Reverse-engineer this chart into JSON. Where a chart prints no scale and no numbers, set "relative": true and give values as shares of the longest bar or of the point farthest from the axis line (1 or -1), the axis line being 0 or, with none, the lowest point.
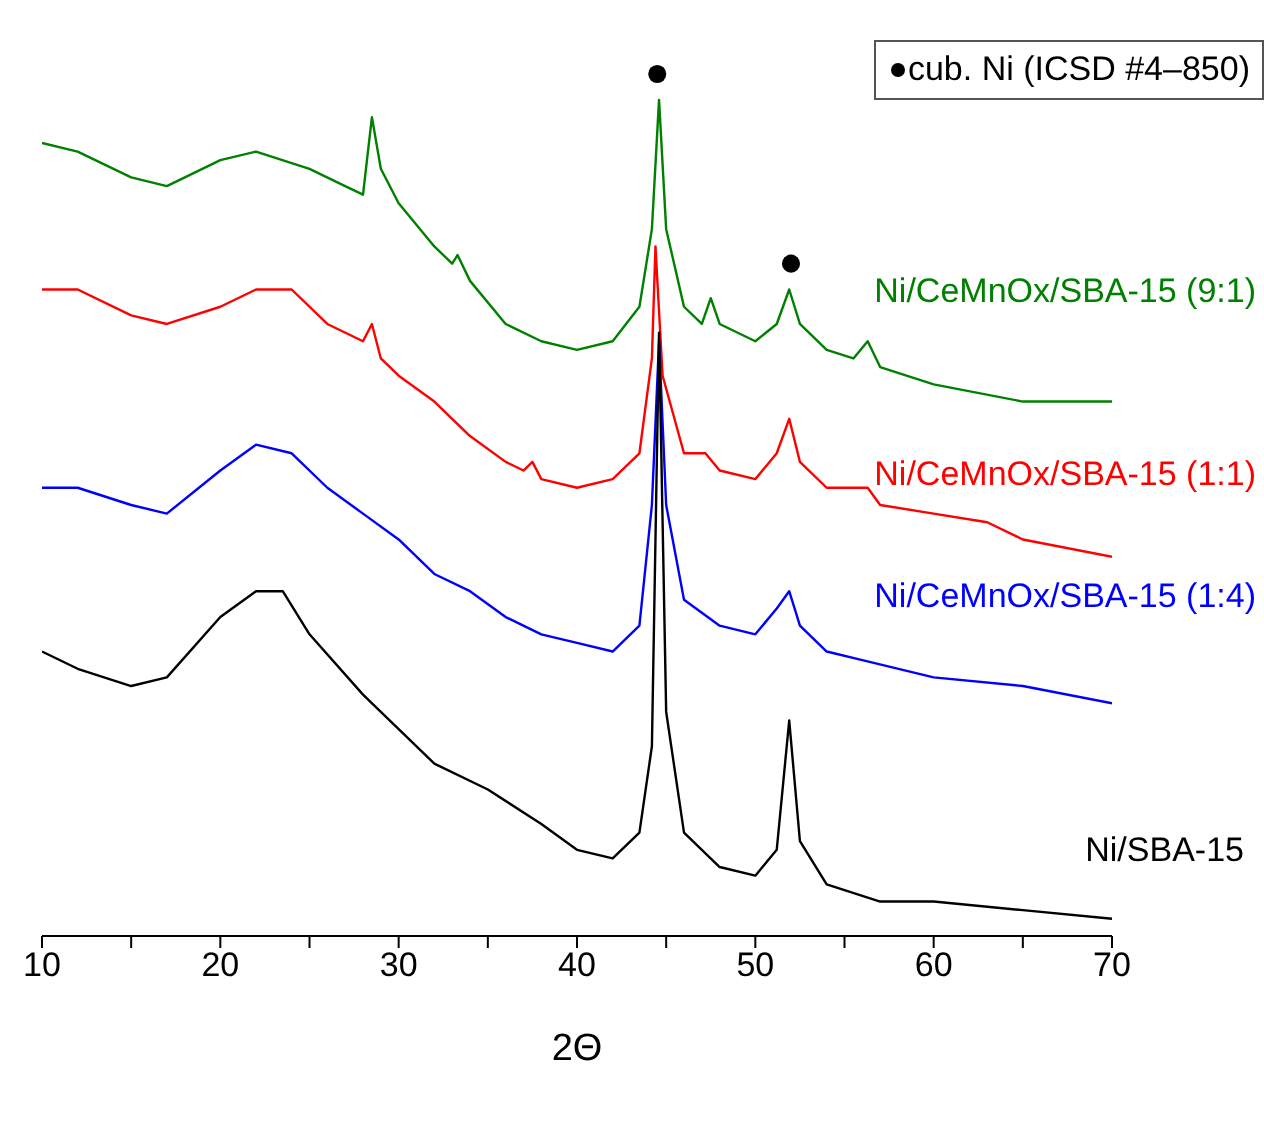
{
  "chart_data": {
    "type": "line",
    "xlabel": "2Θ",
    "relative": true,
    "xlim": [
      10,
      70
    ],
    "xticks": [
      10,
      {
        "value": 15,
        "label": null
      },
      20,
      {
        "value": 25,
        "label": null
      },
      30,
      {
        "value": 35,
        "label": null
      },
      40,
      {
        "value": 45,
        "label": null
      },
      50,
      {
        "value": 55,
        "label": null
      },
      60,
      {
        "value": 65,
        "label": null
      },
      70
    ],
    "legend": "top right",
    "marker": "none",
    "line_style": "solid",
    "series": [
      {
        "name": "Ni/CeMnOx/SBA-15 (9:1)",
        "color": "#008000",
        "x": [
          10,
          12,
          15,
          17,
          20,
          22,
          25,
          27,
          28,
          28.5,
          29,
          30,
          32,
          33,
          33.3,
          34,
          36,
          38,
          40,
          42,
          43.5,
          44.2,
          44.6,
          45,
          46,
          47,
          47.5,
          48,
          50,
          51.2,
          51.9,
          52.5,
          54,
          55.5,
          56.3,
          57,
          60,
          65,
          70
        ],
        "values": [
          0.92,
          0.91,
          0.88,
          0.87,
          0.9,
          0.91,
          0.89,
          0.87,
          0.86,
          0.95,
          0.89,
          0.85,
          0.8,
          0.78,
          0.79,
          0.76,
          0.71,
          0.69,
          0.68,
          0.69,
          0.73,
          0.82,
          0.97,
          0.82,
          0.73,
          0.71,
          0.74,
          0.71,
          0.69,
          0.71,
          0.75,
          0.71,
          0.68,
          0.67,
          0.69,
          0.66,
          0.64,
          0.62,
          0.62
        ]
      },
      {
        "name": "Ni/CeMnOx/SBA-15 (1:1)",
        "color": "#ff0000",
        "x": [
          10,
          12,
          15,
          17,
          20,
          22,
          24,
          26,
          28,
          28.5,
          29,
          30,
          32,
          34,
          36,
          37,
          37.5,
          38,
          40,
          42,
          43.5,
          44.2,
          44.4,
          44.8,
          46,
          47.2,
          48,
          50,
          51.2,
          51.9,
          52.5,
          54,
          56.3,
          57,
          60,
          63,
          65,
          70
        ],
        "values": [
          0.75,
          0.75,
          0.72,
          0.71,
          0.73,
          0.75,
          0.75,
          0.71,
          0.69,
          0.71,
          0.67,
          0.65,
          0.62,
          0.58,
          0.55,
          0.54,
          0.55,
          0.53,
          0.52,
          0.53,
          0.56,
          0.67,
          0.8,
          0.65,
          0.56,
          0.56,
          0.54,
          0.53,
          0.56,
          0.6,
          0.55,
          0.52,
          0.52,
          0.5,
          0.49,
          0.48,
          0.46,
          0.44
        ]
      },
      {
        "name": "Ni/CeMnOx/SBA-15 (1:4)",
        "color": "#0000ff",
        "x": [
          10,
          12,
          15,
          17,
          20,
          22,
          24,
          26,
          28,
          30,
          32,
          34,
          36,
          38,
          40,
          42,
          43.5,
          44.2,
          44.6,
          45,
          46,
          48,
          50,
          51.2,
          51.9,
          52.5,
          54,
          56,
          60,
          65,
          70
        ],
        "values": [
          0.52,
          0.52,
          0.5,
          0.49,
          0.54,
          0.57,
          0.56,
          0.52,
          0.49,
          0.46,
          0.42,
          0.4,
          0.37,
          0.35,
          0.34,
          0.33,
          0.36,
          0.5,
          0.69,
          0.5,
          0.39,
          0.36,
          0.35,
          0.38,
          0.4,
          0.36,
          0.33,
          0.32,
          0.3,
          0.29,
          0.27
        ]
      },
      {
        "name": "Ni/SBA-15",
        "color": "#000000",
        "x": [
          10,
          12,
          15,
          17,
          20,
          22,
          23.5,
          25,
          28,
          30,
          32,
          35,
          38,
          40,
          42,
          43.5,
          44.2,
          44.6,
          45,
          46,
          48,
          50,
          51.2,
          51.9,
          52.5,
          54,
          57,
          60,
          65,
          70
        ],
        "values": [
          0.33,
          0.31,
          0.29,
          0.3,
          0.37,
          0.4,
          0.4,
          0.35,
          0.28,
          0.24,
          0.2,
          0.17,
          0.13,
          0.1,
          0.09,
          0.12,
          0.22,
          0.7,
          0.26,
          0.12,
          0.08,
          0.07,
          0.1,
          0.25,
          0.11,
          0.06,
          0.04,
          0.04,
          0.03,
          0.02
        ]
      },
      {
        "name": "cub. Ni (ICSD #4–850)",
        "type": "scatter",
        "marker": "circle",
        "color": "#000000",
        "x": [
          44.5,
          52
        ],
        "values": [
          1,
          0.78
        ]
      }
    ]
  }
}
